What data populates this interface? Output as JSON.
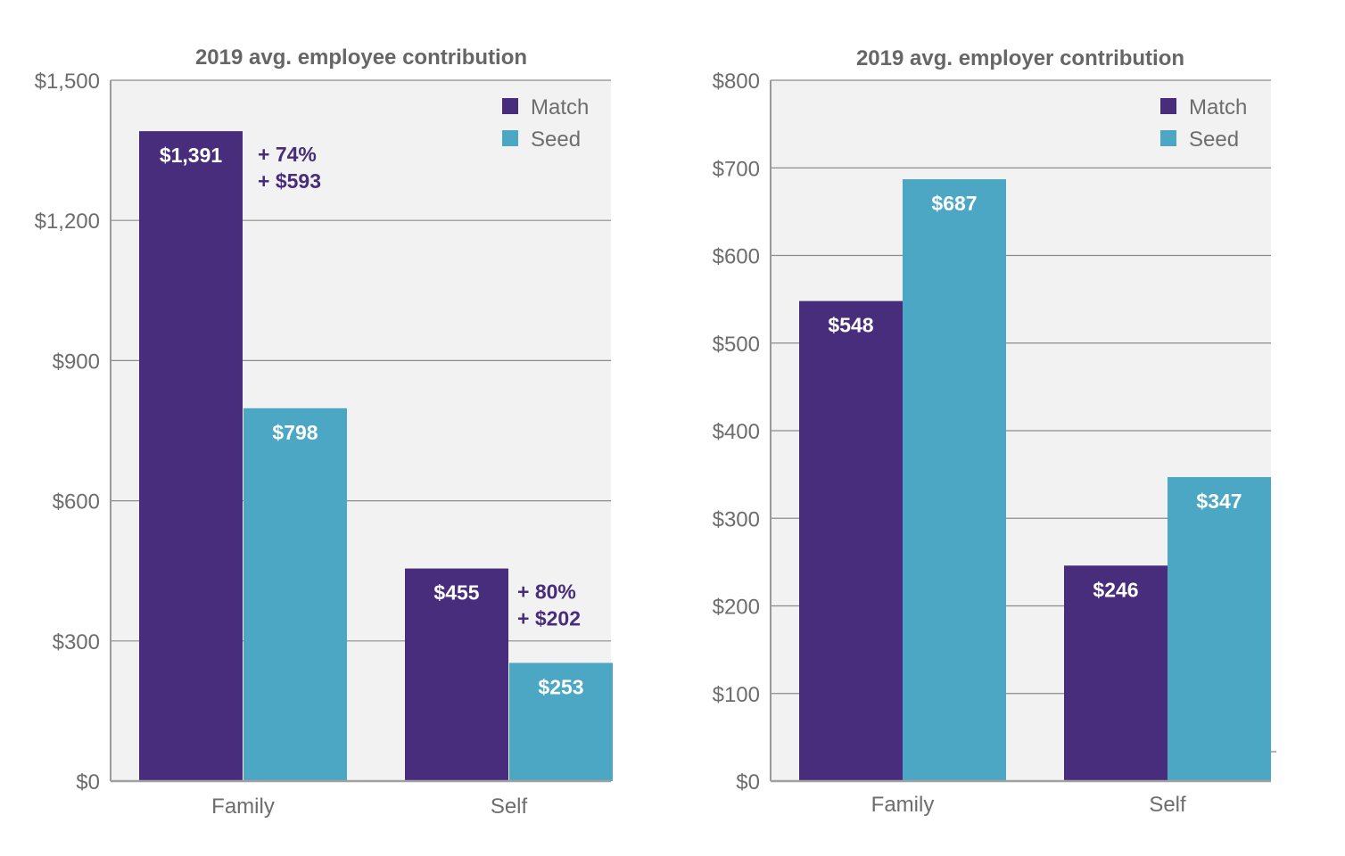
{
  "chart_data": [
    {
      "type": "bar",
      "title": "2019 avg. employee contribution",
      "xlabel": "",
      "ylabel": "",
      "categories": [
        "Family",
        "Self"
      ],
      "series": [
        {
          "name": "Match",
          "color": "#472d7b",
          "values": [
            1391,
            455
          ],
          "labels": [
            "$1,391",
            "$455"
          ]
        },
        {
          "name": "Seed",
          "color": "#4ba7c3",
          "values": [
            798,
            253
          ],
          "labels": [
            "$798",
            "$253"
          ]
        }
      ],
      "ylim": [
        0,
        1500
      ],
      "yticks": [
        0,
        300,
        600,
        900,
        1200,
        1500
      ],
      "ytick_labels": [
        "$0",
        "$300",
        "$600",
        "$900",
        "$1,200",
        "$1,500"
      ],
      "grid": true,
      "legend": "top-right",
      "annotations": [
        {
          "category": "Family",
          "lines": [
            "+ 74%",
            "+ $593"
          ]
        },
        {
          "category": "Self",
          "lines": [
            "+ 80%",
            "+ $202"
          ]
        }
      ]
    },
    {
      "type": "bar",
      "title": "2019 avg. employer contribution",
      "xlabel": "",
      "ylabel": "",
      "categories": [
        "Family",
        "Self"
      ],
      "series": [
        {
          "name": "Match",
          "color": "#472d7b",
          "values": [
            548,
            246
          ],
          "labels": [
            "$548",
            "$246"
          ]
        },
        {
          "name": "Seed",
          "color": "#4ba7c3",
          "values": [
            687,
            347
          ],
          "labels": [
            "$687",
            "$347"
          ]
        }
      ],
      "ylim": [
        0,
        800
      ],
      "yticks": [
        0,
        100,
        200,
        300,
        400,
        500,
        600,
        700,
        800
      ],
      "ytick_labels": [
        "$0",
        "$100",
        "$200",
        "$300",
        "$400",
        "$500",
        "$600",
        "$700",
        "$800"
      ],
      "grid": true,
      "legend": "top-right",
      "annotations": []
    }
  ],
  "colors": {
    "plot_background": "#f2f2f2",
    "gridline": "#8c8c8c",
    "axis_text": "#6d6d6d",
    "title_text": "#666666"
  }
}
